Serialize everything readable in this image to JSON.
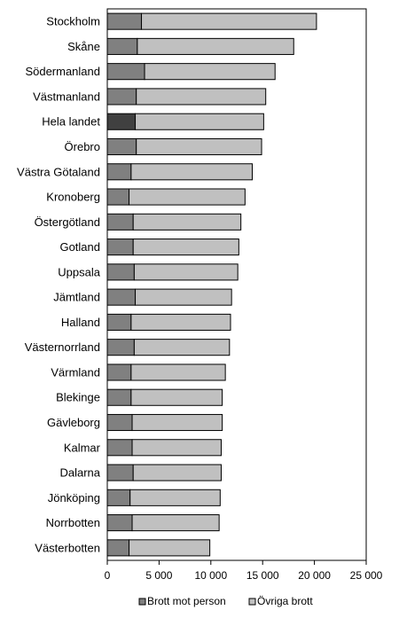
{
  "chart_data": {
    "type": "bar",
    "orientation": "horizontal",
    "stacked": true,
    "title": "",
    "xlabel": "",
    "ylabel": "",
    "xlim": [
      0,
      25000
    ],
    "x_ticks": [
      0,
      5000,
      10000,
      15000,
      20000,
      25000
    ],
    "x_tick_labels": [
      "0",
      "5 000",
      "10 000",
      "15 000",
      "20 000",
      "25 000"
    ],
    "grid": false,
    "legend_position": "bottom",
    "categories": [
      "Stockholm",
      "Skåne",
      "Södermanland",
      "Västmanland",
      "Hela landet",
      "Örebro",
      "Västra Götaland",
      "Kronoberg",
      "Östergötland",
      "Gotland",
      "Uppsala",
      "Jämtland",
      "Halland",
      "Västernorrland",
      "Värmland",
      "Blekinge",
      "Gävleborg",
      "Kalmar",
      "Dalarna",
      "Jönköping",
      "Norrbotten",
      "Västerbotten"
    ],
    "highlight_category": "Hela landet",
    "series": [
      {
        "name": "Brott mot person",
        "color": "#808080",
        "highlight_color": "#404040",
        "values": [
          3300,
          2900,
          3600,
          2800,
          2700,
          2800,
          2300,
          2100,
          2500,
          2500,
          2600,
          2700,
          2300,
          2600,
          2300,
          2300,
          2400,
          2400,
          2500,
          2200,
          2400,
          2100
        ]
      },
      {
        "name": "Övriga brott",
        "color": "#c0c0c0",
        "values": [
          16900,
          15100,
          12600,
          12500,
          12400,
          12100,
          11700,
          11200,
          10400,
          10200,
          10000,
          9300,
          9600,
          9200,
          9100,
          8800,
          8700,
          8600,
          8500,
          8700,
          8400,
          7800
        ]
      }
    ]
  }
}
